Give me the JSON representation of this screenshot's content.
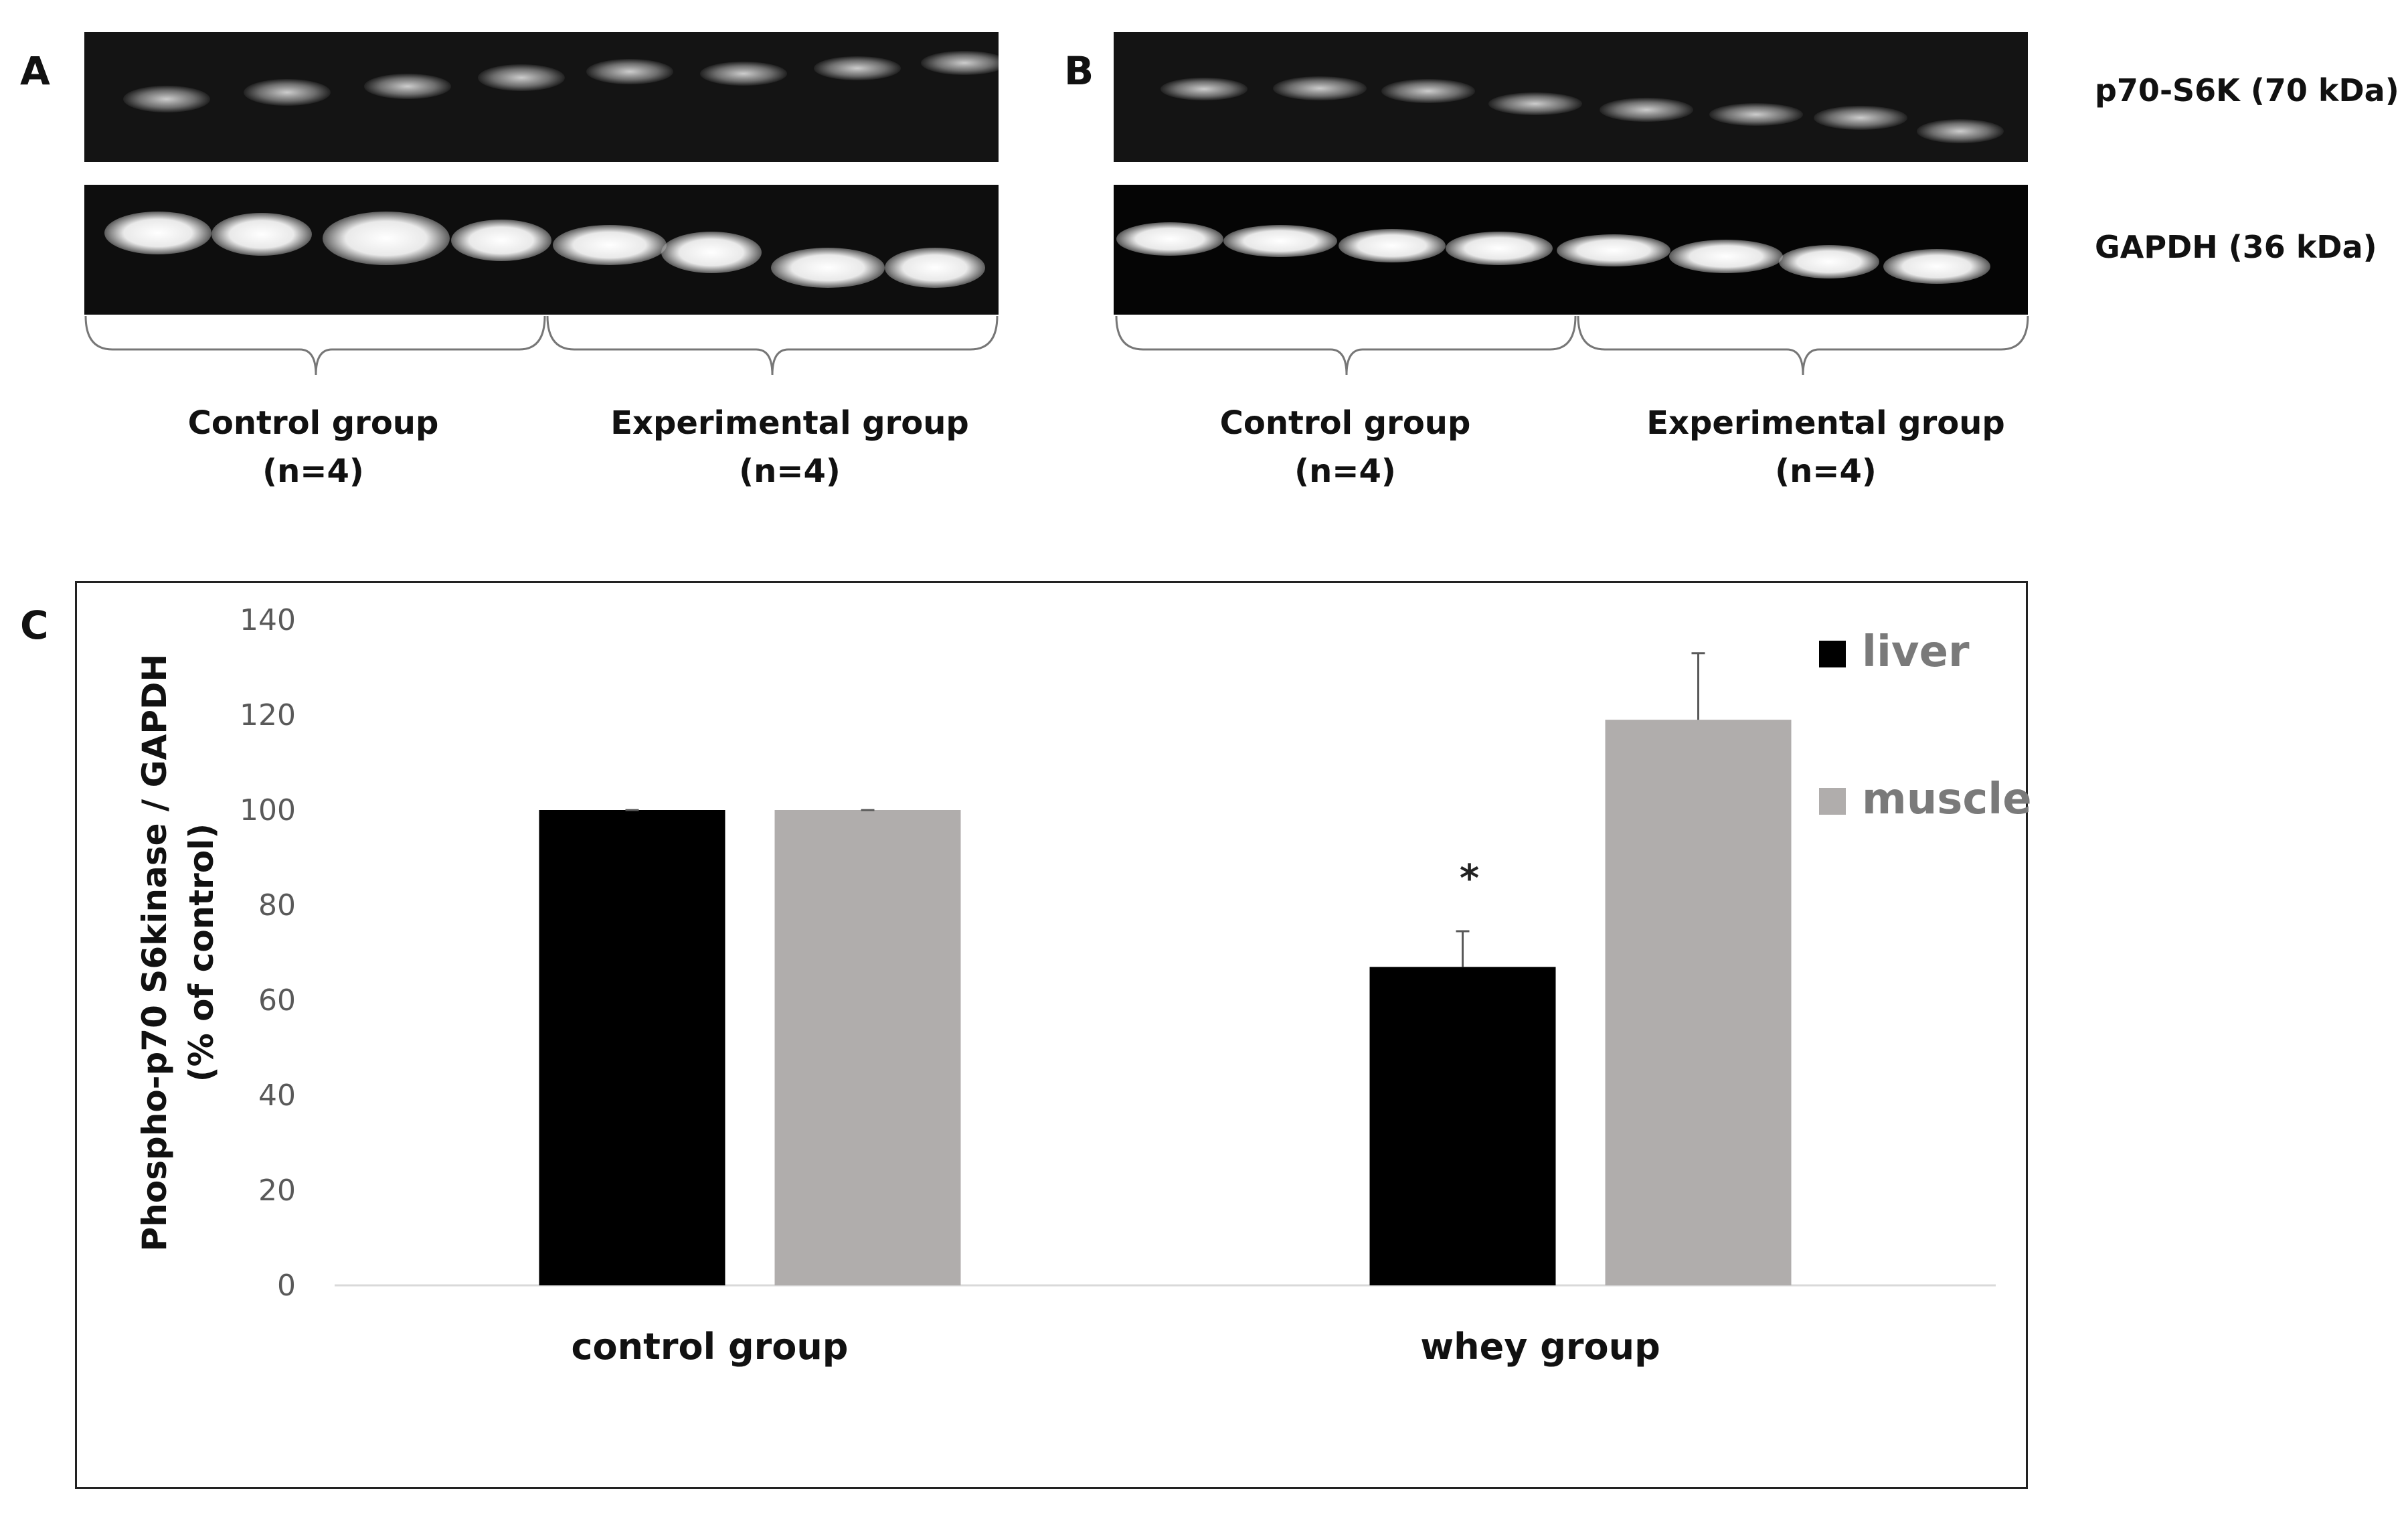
{
  "panels": {
    "A": {
      "letter": "A"
    },
    "B": {
      "letter": "B"
    },
    "C": {
      "letter": "C"
    }
  },
  "blot_labels": {
    "p70": "p70-S6K (70 kDa)",
    "gapdh": "GAPDH (36 kDa)"
  },
  "group_labels": {
    "control": "Control group",
    "experimental": "Experimental group",
    "n": "(n=4)"
  },
  "chart_data": {
    "type": "bar",
    "categories": [
      "control group",
      "whey group"
    ],
    "series": [
      {
        "name": "liver",
        "values": [
          100,
          67
        ],
        "errors": [
          0,
          7.5
        ],
        "color": "#000000"
      },
      {
        "name": "muscle",
        "values": [
          100,
          119
        ],
        "errors": [
          0,
          14
        ],
        "color": "#b0adac"
      }
    ],
    "ylabel": [
      "Phospho-p70 S6kinase / GAPDH",
      "(% of control)"
    ],
    "ylim": [
      0,
      140
    ],
    "yticks": [
      0,
      20,
      40,
      60,
      80,
      100,
      120,
      140
    ],
    "annotation": "*",
    "grid": false,
    "legend_position": "top-right"
  }
}
